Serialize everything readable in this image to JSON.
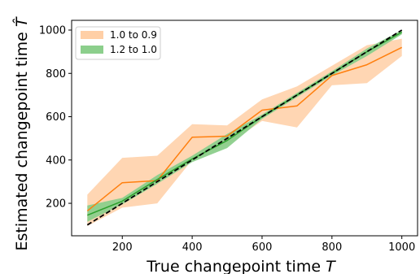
{
  "chart_data": {
    "type": "line",
    "xlabel": "True changepoint time",
    "xlabel_symbol": "T",
    "ylabel": "Estimated changepoint time",
    "ylabel_symbol": "T̂",
    "xlim": [
      55,
      1045
    ],
    "ylim": [
      50,
      1045
    ],
    "x_ticks": [
      200,
      400,
      600,
      800,
      1000
    ],
    "y_ticks": [
      200,
      400,
      600,
      800,
      1000
    ],
    "x_tick_labels": [
      "200",
      "400",
      "600",
      "800",
      "1000"
    ],
    "y_tick_labels": [
      "200",
      "400",
      "600",
      "800",
      "1000"
    ],
    "grid": false,
    "legend_position": "top-left",
    "x": [
      100,
      200,
      300,
      400,
      500,
      600,
      700,
      800,
      900,
      1000
    ],
    "series": [
      {
        "name": "1.0 to 0.9",
        "line_color": "#ff7f0e",
        "fill_color": "#ffcfa6",
        "mean": [
          165,
          295,
          305,
          505,
          510,
          630,
          650,
          790,
          840,
          920
        ],
        "lower": [
          95,
          180,
          200,
          400,
          470,
          580,
          550,
          745,
          755,
          880
        ],
        "upper": [
          240,
          410,
          420,
          565,
          560,
          680,
          740,
          835,
          930,
          960
        ]
      },
      {
        "name": "1.2 to 1.0",
        "line_color": "#2ca02c",
        "fill_color": "#8ccf8c",
        "mean": [
          145,
          210,
          310,
          405,
          490,
          600,
          700,
          800,
          900,
          990
        ],
        "lower": [
          115,
          195,
          290,
          390,
          455,
          590,
          690,
          790,
          880,
          980
        ],
        "upper": [
          190,
          225,
          330,
          420,
          520,
          610,
          710,
          810,
          915,
          1000
        ]
      },
      {
        "name": "",
        "line_color": "#000000",
        "style": "dashed",
        "values": [
          100,
          200,
          300,
          400,
          500,
          600,
          700,
          800,
          900,
          1000
        ]
      }
    ]
  }
}
